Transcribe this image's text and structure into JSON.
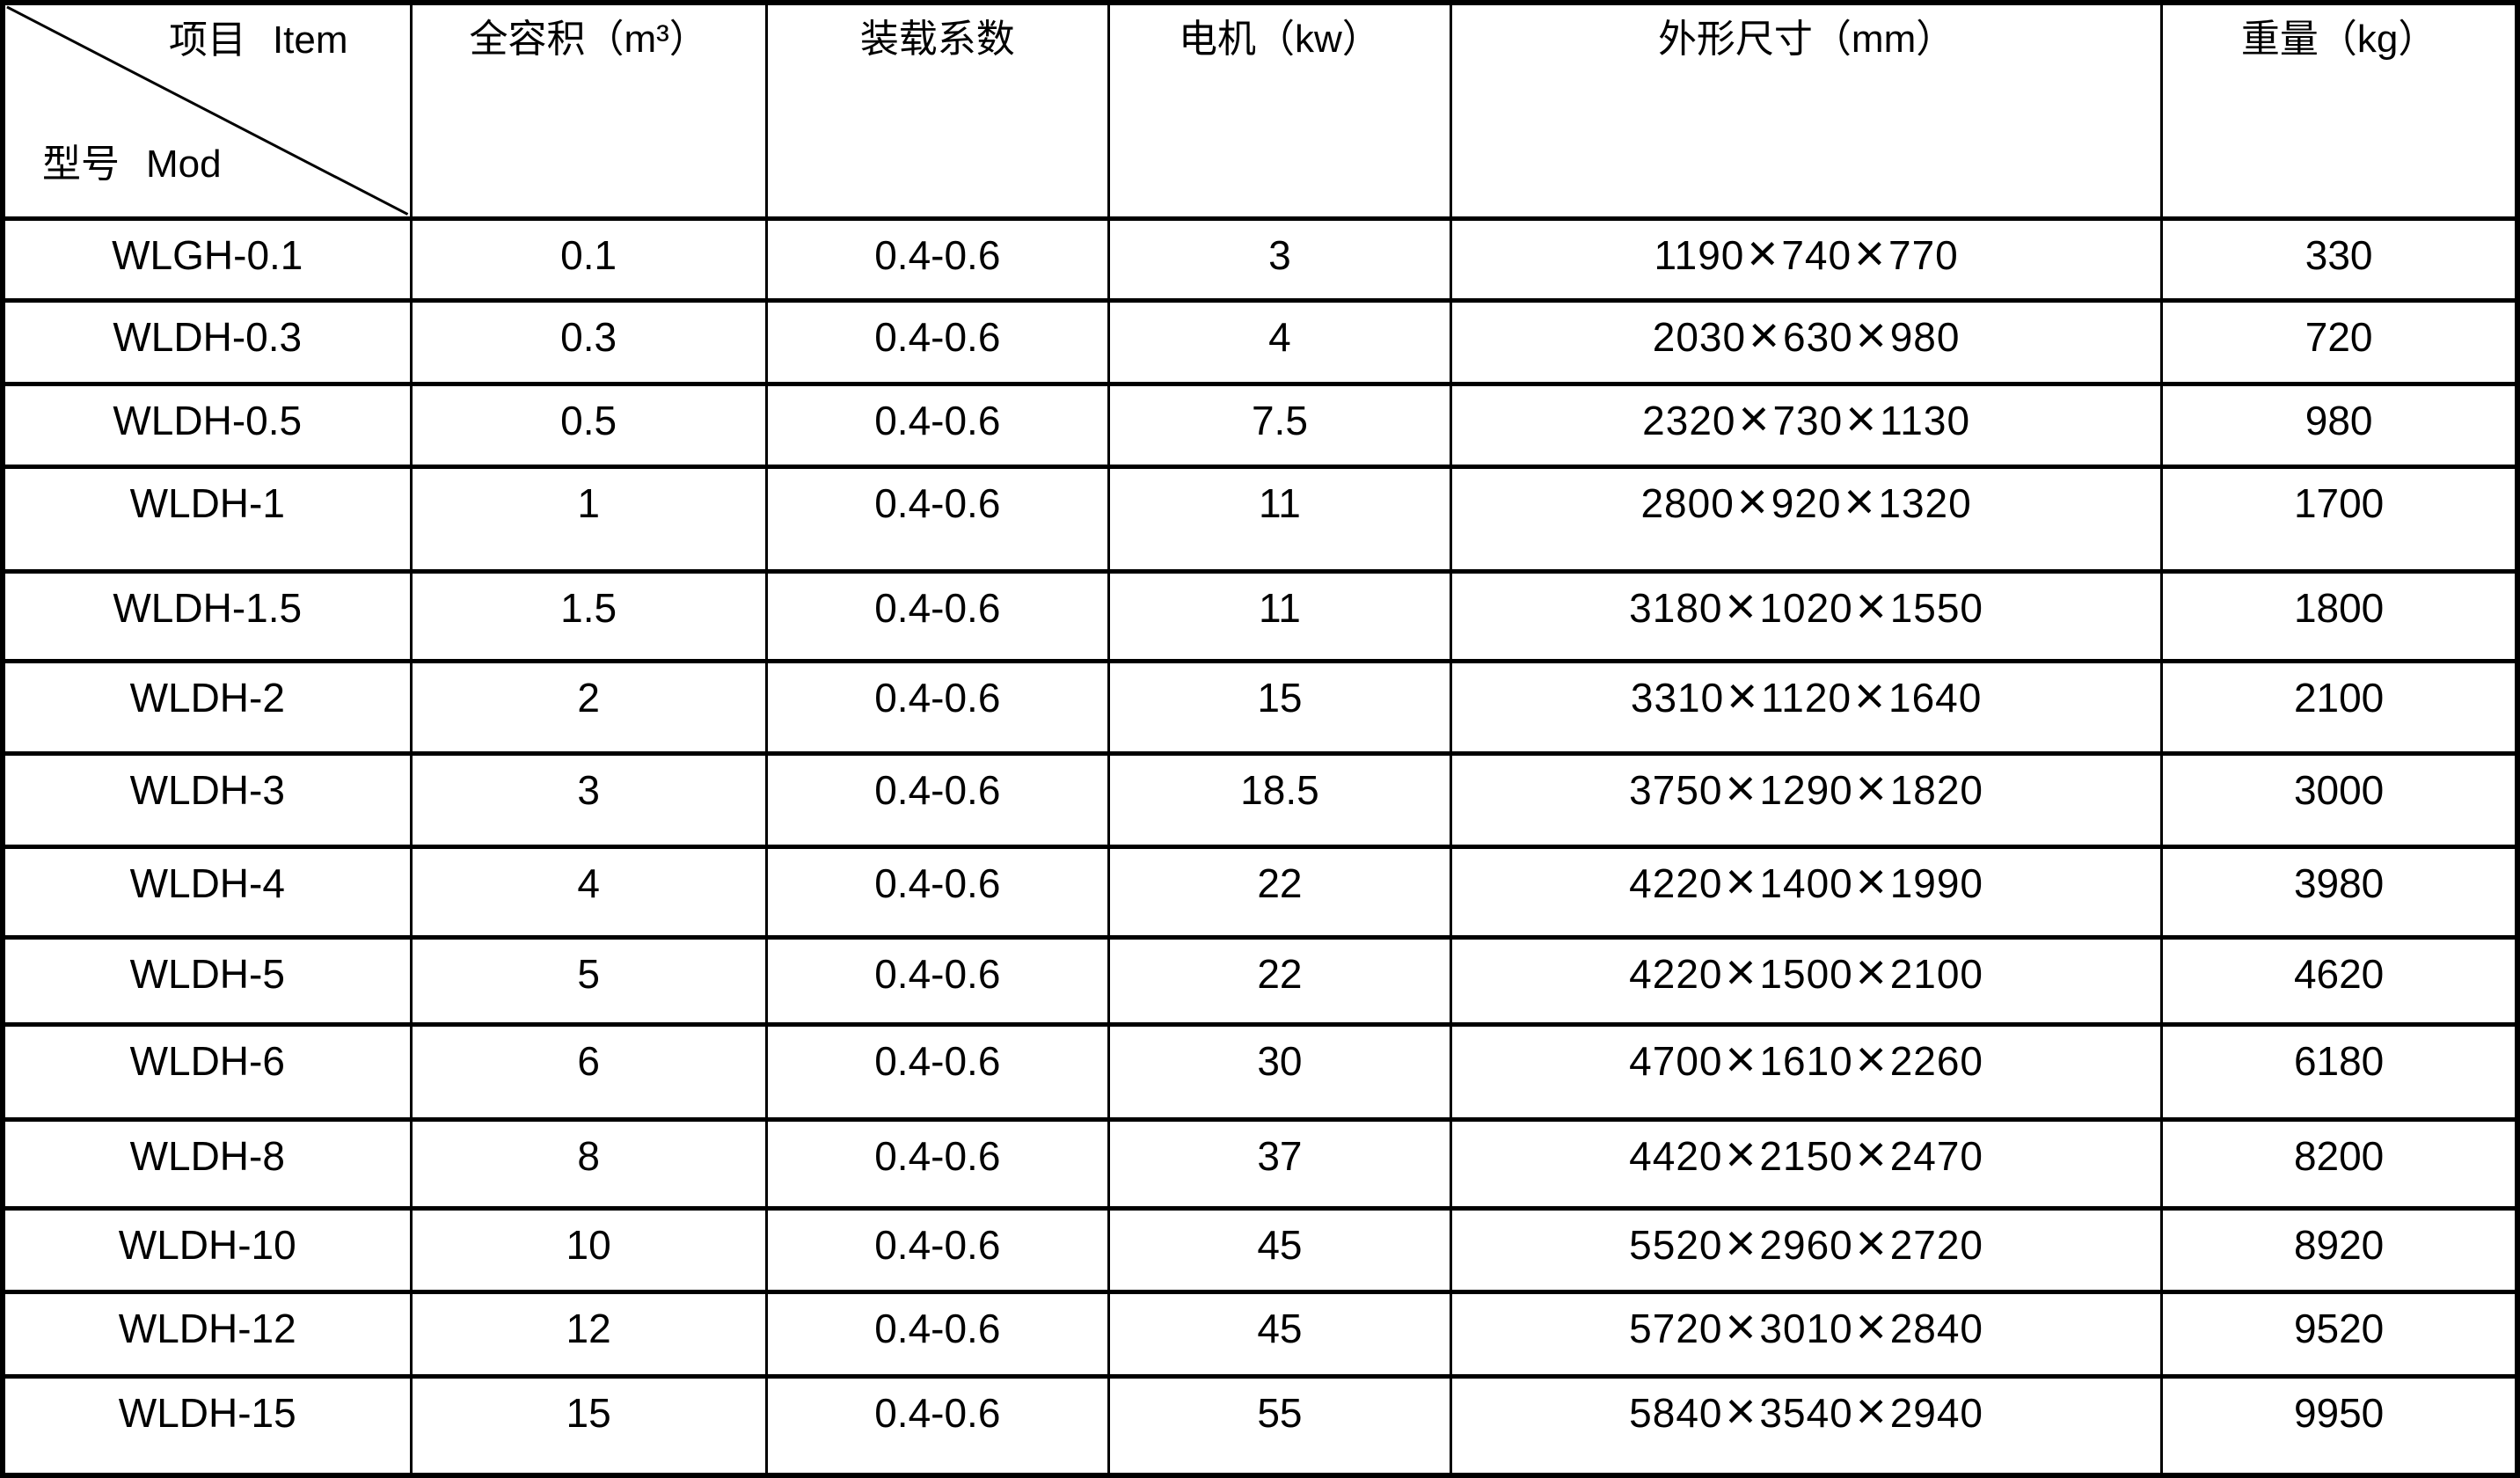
{
  "table": {
    "corner": {
      "item_zh": "项目",
      "item_en": "Item",
      "model_zh": "型号",
      "model_en": "Mod"
    },
    "columns": [
      "全容积（m³）",
      "装载系数",
      "电机（kw）",
      "外形尺寸（mm）",
      "重量（kg）"
    ],
    "rows": [
      {
        "model": "WLGH-0.1",
        "capacity": "0.1",
        "load_factor": "0.4-0.6",
        "motor": "3",
        "dimensions": "1190×740×770",
        "weight": "330"
      },
      {
        "model": "WLDH-0.3",
        "capacity": "0.3",
        "load_factor": "0.4-0.6",
        "motor": "4",
        "dimensions": "2030×630×980",
        "weight": "720"
      },
      {
        "model": "WLDH-0.5",
        "capacity": "0.5",
        "load_factor": "0.4-0.6",
        "motor": "7.5",
        "dimensions": "2320×730×1130",
        "weight": "980"
      },
      {
        "model": "WLDH-1",
        "capacity": "1",
        "load_factor": "0.4-0.6",
        "motor": "11",
        "dimensions": "2800×920×1320",
        "weight": "1700"
      },
      {
        "model": "WLDH-1.5",
        "capacity": "1.5",
        "load_factor": "0.4-0.6",
        "motor": "11",
        "dimensions": "3180×1020×1550",
        "weight": "1800"
      },
      {
        "model": "WLDH-2",
        "capacity": "2",
        "load_factor": "0.4-0.6",
        "motor": "15",
        "dimensions": "3310×1120×1640",
        "weight": "2100"
      },
      {
        "model": "WLDH-3",
        "capacity": "3",
        "load_factor": "0.4-0.6",
        "motor": "18.5",
        "dimensions": "3750×1290×1820",
        "weight": "3000"
      },
      {
        "model": "WLDH-4",
        "capacity": "4",
        "load_factor": "0.4-0.6",
        "motor": "22",
        "dimensions": "4220×1400×1990",
        "weight": "3980"
      },
      {
        "model": "WLDH-5",
        "capacity": "5",
        "load_factor": "0.4-0.6",
        "motor": "22",
        "dimensions": "4220×1500×2100",
        "weight": "4620"
      },
      {
        "model": "WLDH-6",
        "capacity": "6",
        "load_factor": "0.4-0.6",
        "motor": "30",
        "dimensions": "4700×1610×2260",
        "weight": "6180"
      },
      {
        "model": "WLDH-8",
        "capacity": "8",
        "load_factor": "0.4-0.6",
        "motor": "37",
        "dimensions": "4420×2150×2470",
        "weight": "8200"
      },
      {
        "model": "WLDH-10",
        "capacity": "10",
        "load_factor": "0.4-0.6",
        "motor": "45",
        "dimensions": "5520×2960×2720",
        "weight": "8920"
      },
      {
        "model": "WLDH-12",
        "capacity": "12",
        "load_factor": "0.4-0.6",
        "motor": "45",
        "dimensions": "5720×3010×2840",
        "weight": "9520"
      },
      {
        "model": "WLDH-15",
        "capacity": "15",
        "load_factor": "0.4-0.6",
        "motor": "55",
        "dimensions": "5840×3540×2940",
        "weight": "9950"
      }
    ],
    "colors": {
      "border": "#000000",
      "text": "#000000",
      "background": "#ffffff"
    }
  }
}
